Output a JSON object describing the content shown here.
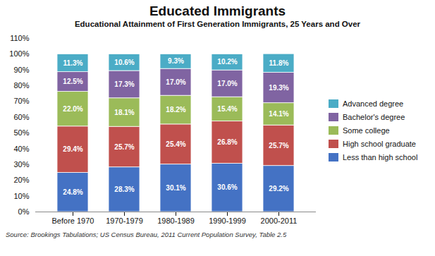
{
  "chart_data": {
    "type": "bar",
    "stacked": true,
    "title": "Educated Immigrants",
    "subtitle": "Educational Attainment of First Generation Immigrants, 25 Years and Over",
    "source": "Source: Brookings Tabulations; US Census Bureau, 2011 Current Population Survey, Table 2.5",
    "categories": [
      "Before 1970",
      "1970-1979",
      "1980-1989",
      "1990-1999",
      "2000-2011"
    ],
    "series": [
      {
        "name": "Less than high school",
        "color": "#4472C4",
        "values": [
          24.8,
          28.3,
          30.1,
          30.6,
          29.2
        ],
        "value_labels": [
          "24.8%",
          "28.3%",
          "30.1%",
          "30.6%",
          "29.2%"
        ]
      },
      {
        "name": "High school graduate",
        "color": "#C0504D",
        "values": [
          29.4,
          25.7,
          25.4,
          26.8,
          25.7
        ],
        "value_labels": [
          "29.4%",
          "25.7%",
          "25.4%",
          "26.8%",
          "25.7%"
        ]
      },
      {
        "name": "Some college",
        "color": "#9BBB59",
        "values": [
          22.0,
          18.1,
          18.2,
          15.4,
          14.1
        ],
        "value_labels": [
          "22.0%",
          "18.1%",
          "18.2%",
          "15.4%",
          "14.1%"
        ]
      },
      {
        "name": "Bachelor's degree",
        "color": "#8064A2",
        "values": [
          12.5,
          17.3,
          17.0,
          17.0,
          19.3
        ],
        "value_labels": [
          "12.5%",
          "17.3%",
          "17.0%",
          "17.0%",
          "19.3%"
        ]
      },
      {
        "name": "Advanced degree",
        "color": "#4BACC6",
        "values": [
          11.3,
          10.6,
          9.3,
          10.2,
          11.8
        ],
        "value_labels": [
          "11.3%",
          "10.6%",
          "9.3%",
          "10.2%",
          "11.8%"
        ]
      }
    ],
    "ylim": [
      0,
      110
    ],
    "yticks": [
      {
        "value": 0,
        "label": "0%"
      },
      {
        "value": 10,
        "label": "10%"
      },
      {
        "value": 20,
        "label": "20%"
      },
      {
        "value": 30,
        "label": "30%"
      },
      {
        "value": 40,
        "label": "40%"
      },
      {
        "value": 50,
        "label": "50%"
      },
      {
        "value": 60,
        "label": "60%"
      },
      {
        "value": 70,
        "label": "70%"
      },
      {
        "value": 80,
        "label": "80%"
      },
      {
        "value": 90,
        "label": "90%"
      },
      {
        "value": 100,
        "label": "100%"
      },
      {
        "value": 110,
        "label": "110%"
      }
    ],
    "grid": false,
    "legend": "right",
    "data_labels": true
  }
}
